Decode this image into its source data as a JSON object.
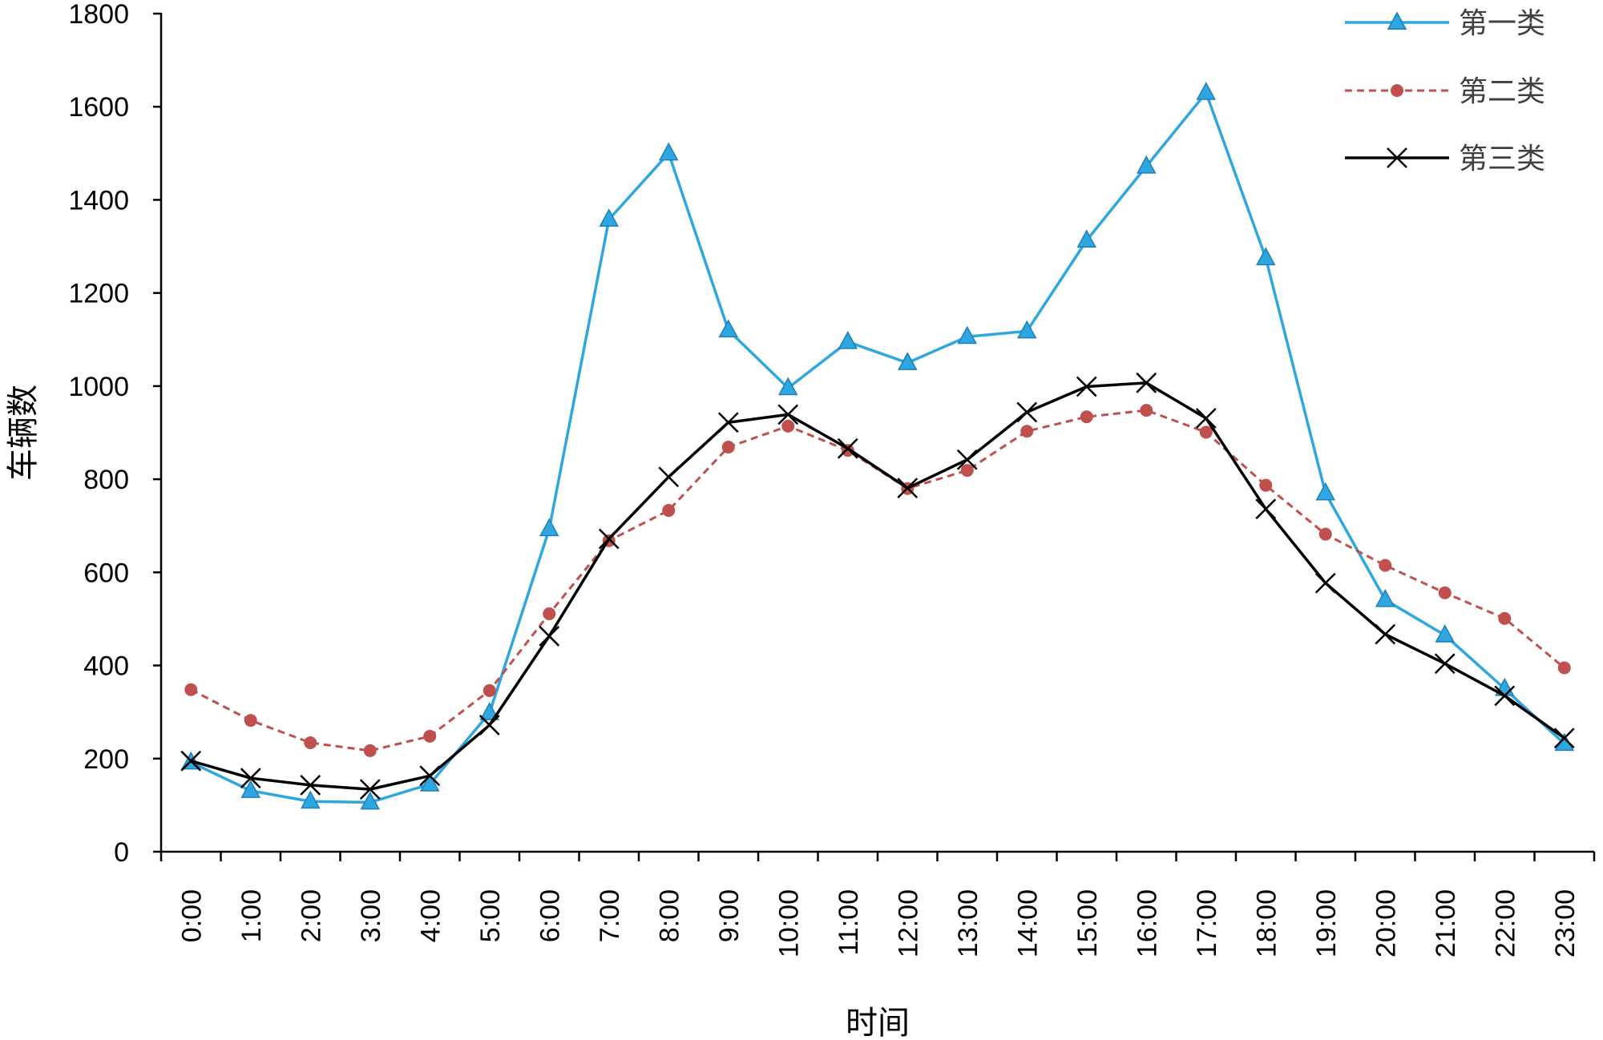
{
  "chart_data": {
    "type": "line",
    "title": "",
    "xlabel": "时间",
    "ylabel": "车辆数",
    "ylim": [
      0,
      1800
    ],
    "yticks": [
      0,
      200,
      400,
      600,
      800,
      1000,
      1200,
      1400,
      1600,
      1800
    ],
    "grid": false,
    "legend_position": "top-right",
    "categories": [
      "0:00",
      "1:00",
      "2:00",
      "3:00",
      "4:00",
      "5:00",
      "6:00",
      "7:00",
      "8:00",
      "9:00",
      "10:00",
      "11:00",
      "12:00",
      "13:00",
      "14:00",
      "15:00",
      "16:00",
      "17:00",
      "18:00",
      "19:00",
      "20:00",
      "21:00",
      "22:00",
      "23:00"
    ],
    "series": [
      {
        "name": "第一类",
        "color": "#2ea7e0",
        "marker": "triangle",
        "dash": "solid",
        "values": [
          192,
          131,
          108,
          106,
          145,
          298,
          693,
          1358,
          1500,
          1120,
          996,
          1095,
          1050,
          1106,
          1118,
          1313,
          1472,
          1630,
          1275,
          770,
          541,
          465,
          350,
          232
        ]
      },
      {
        "name": "第二类",
        "color": "#c0504d",
        "marker": "circle",
        "dash": "dashed",
        "values": [
          348,
          282,
          234,
          217,
          248,
          346,
          511,
          668,
          733,
          869,
          914,
          862,
          780,
          819,
          903,
          934,
          948,
          901,
          787,
          682,
          615,
          556,
          501,
          395
        ]
      },
      {
        "name": "第三类",
        "color": "#000000",
        "marker": "x",
        "dash": "solid",
        "values": [
          195,
          158,
          143,
          134,
          163,
          272,
          463,
          672,
          805,
          922,
          939,
          866,
          781,
          842,
          944,
          999,
          1007,
          931,
          736,
          577,
          467,
          404,
          335,
          244
        ]
      }
    ]
  }
}
